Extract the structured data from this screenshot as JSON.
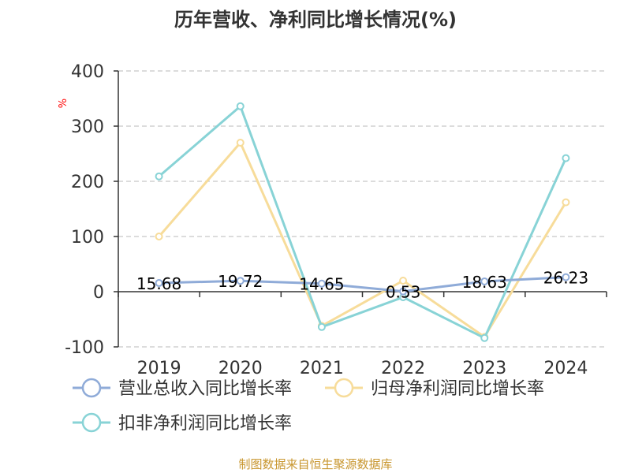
{
  "chart_data": {
    "type": "line",
    "title": "历年营收、净利同比增长情况(%)",
    "ylabel": "%",
    "xlabel": "",
    "categories": [
      "2019",
      "2020",
      "2021",
      "2022",
      "2023",
      "2024"
    ],
    "yticks": [
      "400",
      "300",
      "200",
      "100",
      "0",
      "-100"
    ],
    "ylim": [
      -100,
      400
    ],
    "grid": true,
    "legend_position": "bottom",
    "series": [
      {
        "name": "营业总收入同比增长率",
        "color": "#8fabd8",
        "values": [
          15.68,
          19.72,
          14.65,
          0.53,
          18.63,
          26.23
        ],
        "labels": [
          "15.68",
          "19.72",
          "14.65",
          "0.53",
          "18.63",
          "26.23"
        ]
      },
      {
        "name": "归母净利润同比增长率",
        "color": "#f7dc9a",
        "values": [
          100,
          270,
          -62,
          20,
          -82,
          162
        ]
      },
      {
        "name": "扣非净利润同比增长率",
        "color": "#88d3d6",
        "values": [
          209,
          336,
          -64,
          -10,
          -84,
          242
        ]
      }
    ],
    "source": "制图数据来自恒生聚源数据库"
  }
}
